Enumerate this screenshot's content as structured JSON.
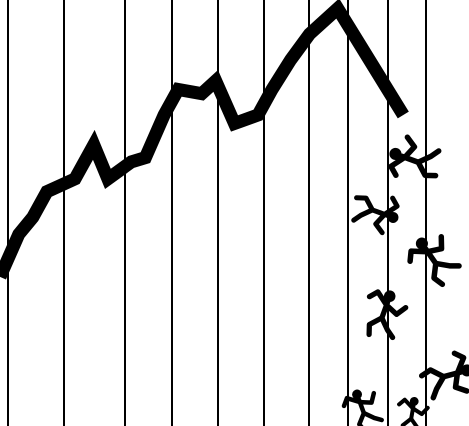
{
  "chart_data": {
    "type": "line",
    "title": "",
    "xlabel": "",
    "ylabel": "",
    "xlim": [
      0,
      1
    ],
    "ylim": [
      0,
      1
    ],
    "grid": "vertical",
    "legend": "none",
    "line_color": "#000000",
    "grid_color": "#000000",
    "background": "#ffffff",
    "series": [
      {
        "x": [
          0.0,
          0.04,
          0.07,
          0.1,
          0.16,
          0.2,
          0.23,
          0.28,
          0.31,
          0.35,
          0.38,
          0.43,
          0.46,
          0.5,
          0.55,
          0.58,
          0.62,
          0.66,
          0.72,
          0.86
        ],
        "y": [
          0.35,
          0.45,
          0.49,
          0.55,
          0.58,
          0.66,
          0.58,
          0.62,
          0.63,
          0.73,
          0.79,
          0.78,
          0.81,
          0.71,
          0.73,
          0.79,
          0.86,
          0.92,
          0.98,
          0.73
        ]
      }
    ],
    "figures": [
      {
        "name": "falling-figure-1"
      },
      {
        "name": "falling-figure-2"
      },
      {
        "name": "falling-figure-3"
      },
      {
        "name": "falling-figure-4"
      },
      {
        "name": "falling-figure-5"
      },
      {
        "name": "falling-figure-6"
      },
      {
        "name": "falling-figure-7"
      }
    ]
  }
}
